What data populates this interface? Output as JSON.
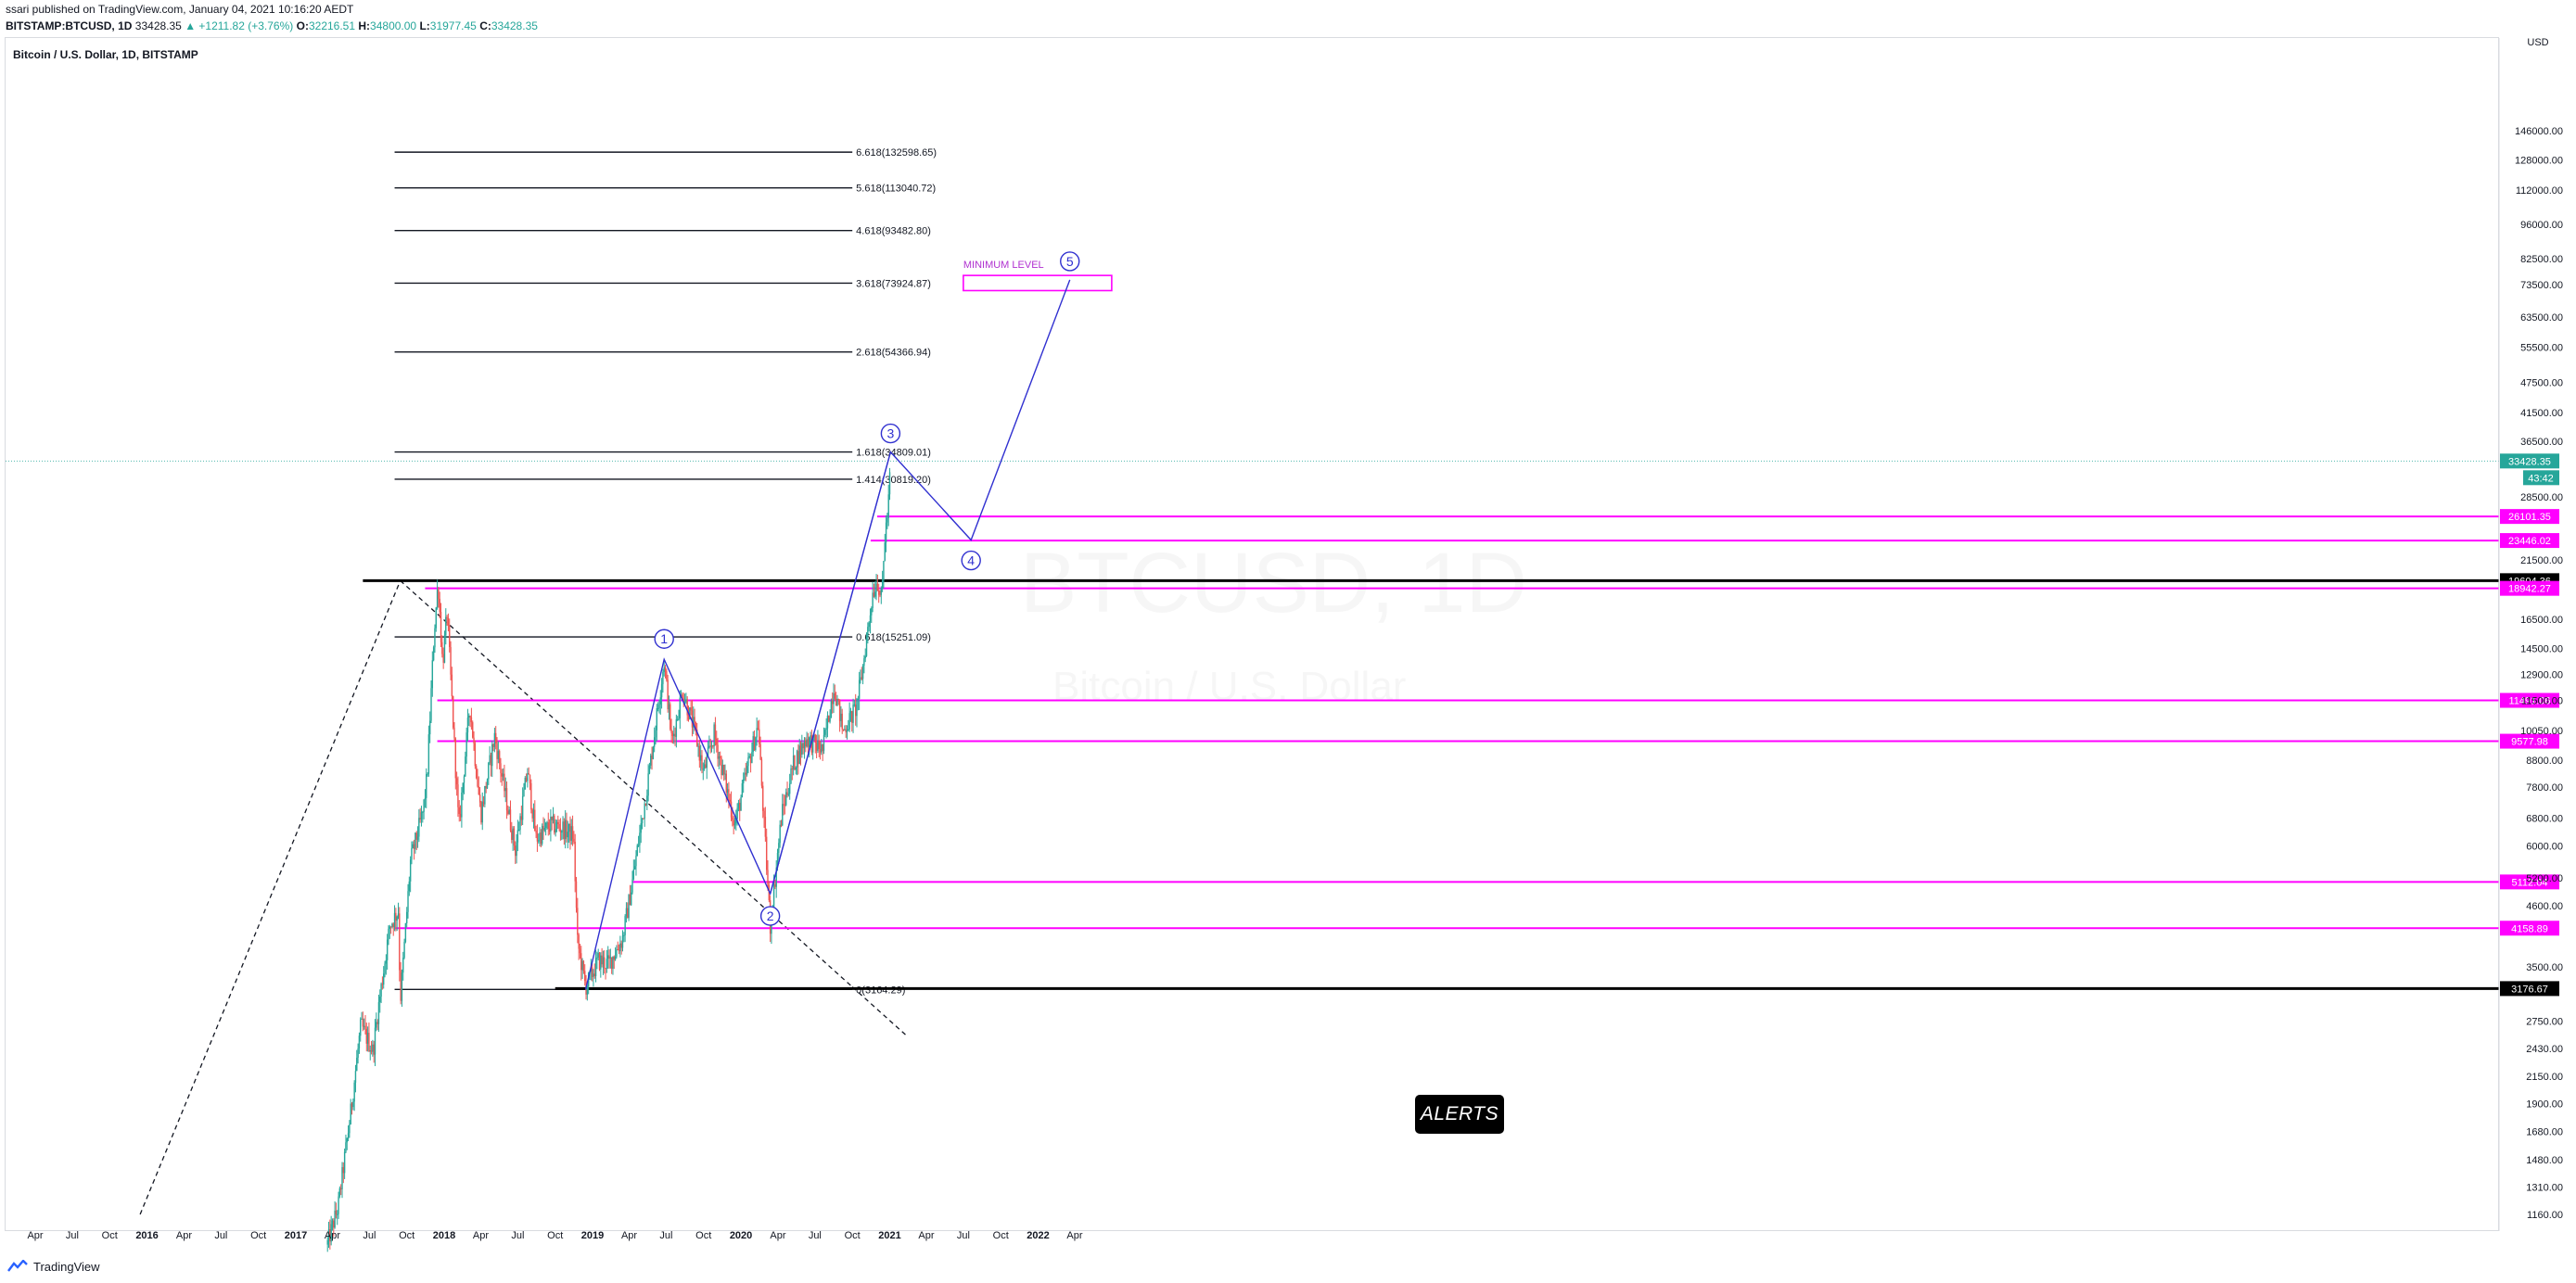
{
  "header": {
    "publish_line": "ssari published on TradingView.com, January 04, 2021 10:16:20 AEDT",
    "symbol": "BITSTAMP:BTCUSD, 1D",
    "price": "33428.35",
    "change": "▲ +1211.82 (+3.76%)",
    "o_label": "O:",
    "o_value": "32216.51",
    "h_label": "H:",
    "h_value": "34800.00",
    "l_label": "L:",
    "l_value": "31977.45",
    "c_label": "C:",
    "c_value": "33428.35"
  },
  "chart_title": "Bitcoin / U.S. Dollar, 1D, BITSTAMP",
  "watermark": {
    "symbol": "BTCUSD, 1D",
    "name": "Bitcoin / U.S. Dollar"
  },
  "axis_unit": "USD",
  "alerts_label": "ALERTS",
  "footer_brand": "TradingView",
  "colors": {
    "up": "#26a69a",
    "down": "#ef5350",
    "magenta": "#ff00ff",
    "wave": "#3030d0",
    "fib": "#131722",
    "purple_text": "#b030d0",
    "last_price": "#26a69a"
  },
  "chart_data": {
    "type": "candlestick",
    "y_scale": "log",
    "ylim": [
      1000,
      150000
    ],
    "x_axis_labels": [
      "Apr",
      "Jul",
      "Oct",
      "2016",
      "Apr",
      "Jul",
      "Oct",
      "2017",
      "Apr",
      "Jul",
      "Oct",
      "2018",
      "Apr",
      "Jul",
      "Oct",
      "2019",
      "Apr",
      "Jul",
      "Oct",
      "2020",
      "Apr",
      "Jul",
      "Oct",
      "2021",
      "Apr",
      "Jul",
      "Oct",
      "2022",
      "Apr"
    ],
    "x_axis_dates": [
      "2015-04-01",
      "2015-07-01",
      "2015-10-01",
      "2016-01-01",
      "2016-04-01",
      "2016-07-01",
      "2016-10-01",
      "2017-01-01",
      "2017-04-01",
      "2017-07-01",
      "2017-10-01",
      "2018-01-01",
      "2018-04-01",
      "2018-07-01",
      "2018-10-01",
      "2019-01-01",
      "2019-04-01",
      "2019-07-01",
      "2019-10-01",
      "2020-01-01",
      "2020-04-01",
      "2020-07-01",
      "2020-10-01",
      "2021-01-01",
      "2021-04-01",
      "2021-07-01",
      "2021-10-01",
      "2022-01-01",
      "2022-04-01"
    ],
    "y_tick_labels": [
      "1160.00",
      "1310.00",
      "1480.00",
      "1680.00",
      "1900.00",
      "2150.00",
      "2430.00",
      "2750.00",
      "3500.00",
      "4600.00",
      "5200.00",
      "6000.00",
      "6800.00",
      "7800.00",
      "8800.00",
      "10050.00",
      "11500.00",
      "12900.00",
      "14500.00",
      "16500.00",
      "21500.00",
      "28500.00",
      "36500.00",
      "41500.00",
      "47500.00",
      "55500.00",
      "63500.00",
      "73500.00",
      "82500.00",
      "96000.00",
      "112000.00",
      "128000.00",
      "146000.00"
    ],
    "fib_levels": [
      {
        "label": "0(3164.29)",
        "value": 3164.29
      },
      {
        "label": "0.618(15251.09)",
        "value": 15251.09
      },
      {
        "label": "1.414(30819.20)",
        "value": 30819.2
      },
      {
        "label": "1.618(34809.01)",
        "value": 34809.01
      },
      {
        "label": "2.618(54366.94)",
        "value": 54366.94
      },
      {
        "label": "3.618(73924.87)",
        "value": 73924.87
      },
      {
        "label": "4.618(93482.80)",
        "value": 93482.8
      },
      {
        "label": "5.618(113040.72)",
        "value": 113040.72
      },
      {
        "label": "6.618(132598.65)",
        "value": 132598.65
      }
    ],
    "horizontal_levels": [
      {
        "label": "26101.35",
        "value": 26101.35,
        "kind": "magenta",
        "from": "2020-12-01"
      },
      {
        "label": "23446.02",
        "value": 23446.02,
        "kind": "magenta",
        "from": "2020-11-15"
      },
      {
        "label": "19604.36",
        "value": 19604.36,
        "kind": "black",
        "from": "2017-06-15"
      },
      {
        "label": "18942.27",
        "value": 18942.27,
        "kind": "magenta",
        "from": "2017-11-15"
      },
      {
        "label": "11491.06",
        "value": 11491.06,
        "kind": "magenta",
        "from": "2017-12-15"
      },
      {
        "label": "9577.98",
        "value": 9577.98,
        "kind": "magenta",
        "from": "2017-12-15"
      },
      {
        "label": "5112.04",
        "value": 5112.04,
        "kind": "magenta",
        "from": "2019-04-10"
      },
      {
        "label": "4158.89",
        "value": 4158.89,
        "kind": "magenta",
        "from": "2017-09-01"
      },
      {
        "label": "3176.67",
        "value": 3176.67,
        "kind": "black",
        "from": "2018-10-01"
      }
    ],
    "last_price": {
      "label": "33428.35",
      "value": 33428.35,
      "countdown": "43:42"
    },
    "wave_points": [
      {
        "label": "1",
        "date": "2019-06-26",
        "value": 13800
      },
      {
        "label": "2",
        "date": "2020-03-13",
        "value": 4850
      },
      {
        "label": "3",
        "date": "2021-01-03",
        "value": 34800
      },
      {
        "label": "4",
        "date": "2021-07-20",
        "value": 23500
      },
      {
        "label": "5",
        "date": "2022-03-20",
        "value": 75000
      }
    ],
    "wave_start": {
      "date": "2018-12-15",
      "value": 3164
    },
    "minimum_zone": {
      "label": "MINIMUM LEVEL",
      "from": "2021-07-01",
      "to": "2022-07-01",
      "low": 71500,
      "high": 76500
    },
    "fib_anchor": {
      "from_date": "2017-09-01",
      "to_date": "2020-10-01"
    },
    "trend_lines": [
      {
        "kind": "dashed",
        "from": {
          "date": "2015-12-15",
          "value": 1160
        },
        "to": {
          "date": "2017-09-15",
          "value": 19600
        }
      },
      {
        "kind": "dashed",
        "from": {
          "date": "2017-09-15",
          "value": 19600
        },
        "to": {
          "date": "2020-10-01",
          "value": 3200
        }
      }
    ],
    "price_path": [
      [
        "2017-03-20",
        1020
      ],
      [
        "2017-04-15",
        1200
      ],
      [
        "2017-05-15",
        1800
      ],
      [
        "2017-06-10",
        2700
      ],
      [
        "2017-07-10",
        2400
      ],
      [
        "2017-07-20",
        2800
      ],
      [
        "2017-08-20",
        4200
      ],
      [
        "2017-09-10",
        4500
      ],
      [
        "2017-09-15",
        3000
      ],
      [
        "2017-10-10",
        5600
      ],
      [
        "2017-11-10",
        7000
      ],
      [
        "2017-11-20",
        8200
      ],
      [
        "2017-12-07",
        15500
      ],
      [
        "2017-12-17",
        19500
      ],
      [
        "2017-12-28",
        13500
      ],
      [
        "2018-01-08",
        17000
      ],
      [
        "2018-01-20",
        11500
      ],
      [
        "2018-02-06",
        6500
      ],
      [
        "2018-03-05",
        11300
      ],
      [
        "2018-04-01",
        6900
      ],
      [
        "2018-05-05",
        9800
      ],
      [
        "2018-06-25",
        5900
      ],
      [
        "2018-07-25",
        8400
      ],
      [
        "2018-08-15",
        6200
      ],
      [
        "2018-09-20",
        6600
      ],
      [
        "2018-10-20",
        6500
      ],
      [
        "2018-11-15",
        6300
      ],
      [
        "2018-11-25",
        3900
      ],
      [
        "2018-12-15",
        3200
      ],
      [
        "2019-01-15",
        3600
      ],
      [
        "2019-02-10",
        3550
      ],
      [
        "2019-03-15",
        3950
      ],
      [
        "2019-04-05",
        4900
      ],
      [
        "2019-05-15",
        7800
      ],
      [
        "2019-06-26",
        13700
      ],
      [
        "2019-07-15",
        9500
      ],
      [
        "2019-08-10",
        12000
      ],
      [
        "2019-09-10",
        10000
      ],
      [
        "2019-10-01",
        8300
      ],
      [
        "2019-10-27",
        9900
      ],
      [
        "2019-12-17",
        6600
      ],
      [
        "2020-01-20",
        8700
      ],
      [
        "2020-02-12",
        10300
      ],
      [
        "2020-03-13",
        4200
      ],
      [
        "2020-04-10",
        6900
      ],
      [
        "2020-05-10",
        8700
      ],
      [
        "2020-06-10",
        9700
      ],
      [
        "2020-07-20",
        9200
      ],
      [
        "2020-08-17",
        12300
      ],
      [
        "2020-09-08",
        10000
      ],
      [
        "2020-10-10",
        11100
      ],
      [
        "2020-10-25",
        13000
      ],
      [
        "2020-11-20",
        18600
      ],
      [
        "2020-12-01",
        19700
      ],
      [
        "2020-12-12",
        18000
      ],
      [
        "2020-12-20",
        23800
      ],
      [
        "2020-12-28",
        27000
      ],
      [
        "2021-01-03",
        33400
      ]
    ]
  }
}
